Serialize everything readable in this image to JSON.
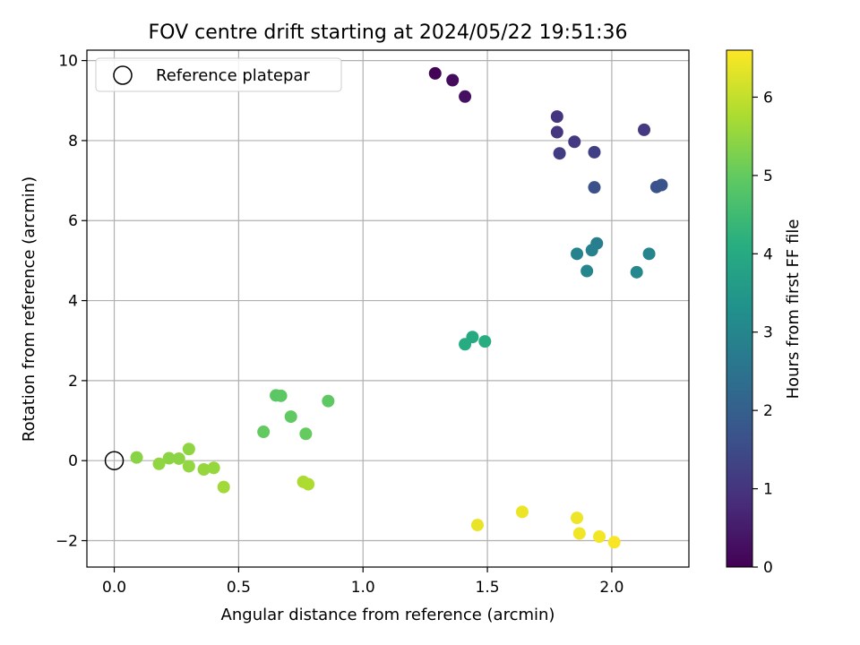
{
  "chart_data": {
    "type": "scatter",
    "title": "FOV centre drift starting at 2024/05/22 19:51:36",
    "xlabel": "Angular distance from reference (arcmin)",
    "ylabel": "Rotation from reference (arcmin)",
    "xlim": [
      -0.11,
      2.31
    ],
    "ylim": [
      -2.66,
      10.26
    ],
    "xticks": [
      0.0,
      0.5,
      1.0,
      1.5,
      2.0
    ],
    "xtick_labels": [
      "0.0",
      "0.5",
      "1.0",
      "1.5",
      "2.0"
    ],
    "yticks": [
      -2,
      0,
      2,
      4,
      6,
      8,
      10
    ],
    "ytick_labels": [
      "−2",
      "0",
      "2",
      "4",
      "6",
      "8",
      "10"
    ],
    "grid": true,
    "legend": {
      "position": "top-left",
      "entries": [
        {
          "label": "Reference platepar",
          "marker": "open-circle"
        }
      ]
    },
    "reference_point": {
      "x": 0.0,
      "y": 0.0
    },
    "colorbar": {
      "label": "Hours from first FF file",
      "colormap": "viridis",
      "range": [
        0,
        6.6
      ],
      "ticks": [
        0,
        1,
        2,
        3,
        4,
        5,
        6
      ],
      "tick_labels": [
        "0",
        "1",
        "2",
        "3",
        "4",
        "5",
        "6"
      ]
    },
    "points": [
      {
        "x": 1.29,
        "y": 9.68,
        "c": 0.05
      },
      {
        "x": 1.36,
        "y": 9.51,
        "c": 0.18
      },
      {
        "x": 1.41,
        "y": 9.1,
        "c": 0.28
      },
      {
        "x": 1.78,
        "y": 8.6,
        "c": 1.0
      },
      {
        "x": 1.78,
        "y": 8.21,
        "c": 1.05
      },
      {
        "x": 1.85,
        "y": 7.97,
        "c": 1.1
      },
      {
        "x": 2.13,
        "y": 8.27,
        "c": 1.12
      },
      {
        "x": 1.79,
        "y": 7.68,
        "c": 1.18
      },
      {
        "x": 1.93,
        "y": 7.71,
        "c": 1.22
      },
      {
        "x": 1.93,
        "y": 6.83,
        "c": 1.6
      },
      {
        "x": 2.18,
        "y": 6.84,
        "c": 1.65
      },
      {
        "x": 2.2,
        "y": 6.89,
        "c": 1.7
      },
      {
        "x": 1.94,
        "y": 5.43,
        "c": 2.8
      },
      {
        "x": 1.92,
        "y": 5.26,
        "c": 2.85
      },
      {
        "x": 1.86,
        "y": 5.17,
        "c": 2.9
      },
      {
        "x": 2.15,
        "y": 5.17,
        "c": 2.95
      },
      {
        "x": 1.9,
        "y": 4.74,
        "c": 3.0
      },
      {
        "x": 2.1,
        "y": 4.71,
        "c": 3.05
      },
      {
        "x": 1.44,
        "y": 3.09,
        "c": 4.0
      },
      {
        "x": 1.41,
        "y": 2.91,
        "c": 4.05
      },
      {
        "x": 1.49,
        "y": 2.98,
        "c": 4.1
      },
      {
        "x": 0.65,
        "y": 1.63,
        "c": 4.9
      },
      {
        "x": 0.67,
        "y": 1.62,
        "c": 4.92
      },
      {
        "x": 0.86,
        "y": 1.49,
        "c": 4.95
      },
      {
        "x": 0.71,
        "y": 1.1,
        "c": 4.97
      },
      {
        "x": 0.6,
        "y": 0.72,
        "c": 5.0
      },
      {
        "x": 0.77,
        "y": 0.67,
        "c": 5.02
      },
      {
        "x": 0.09,
        "y": 0.08,
        "c": 5.4
      },
      {
        "x": 0.22,
        "y": 0.06,
        "c": 5.42
      },
      {
        "x": 0.26,
        "y": 0.05,
        "c": 5.44
      },
      {
        "x": 0.3,
        "y": 0.29,
        "c": 5.46
      },
      {
        "x": 0.18,
        "y": -0.08,
        "c": 5.48
      },
      {
        "x": 0.3,
        "y": -0.14,
        "c": 5.5
      },
      {
        "x": 0.36,
        "y": -0.22,
        "c": 5.52
      },
      {
        "x": 0.4,
        "y": -0.18,
        "c": 5.54
      },
      {
        "x": 0.44,
        "y": -0.66,
        "c": 5.65
      },
      {
        "x": 0.76,
        "y": -0.53,
        "c": 5.75
      },
      {
        "x": 0.78,
        "y": -0.59,
        "c": 5.78
      },
      {
        "x": 1.46,
        "y": -1.61,
        "c": 6.4
      },
      {
        "x": 1.64,
        "y": -1.28,
        "c": 6.42
      },
      {
        "x": 1.86,
        "y": -1.43,
        "c": 6.45
      },
      {
        "x": 1.87,
        "y": -1.82,
        "c": 6.48
      },
      {
        "x": 1.95,
        "y": -1.9,
        "c": 6.5
      },
      {
        "x": 2.01,
        "y": -2.04,
        "c": 6.55
      }
    ]
  }
}
